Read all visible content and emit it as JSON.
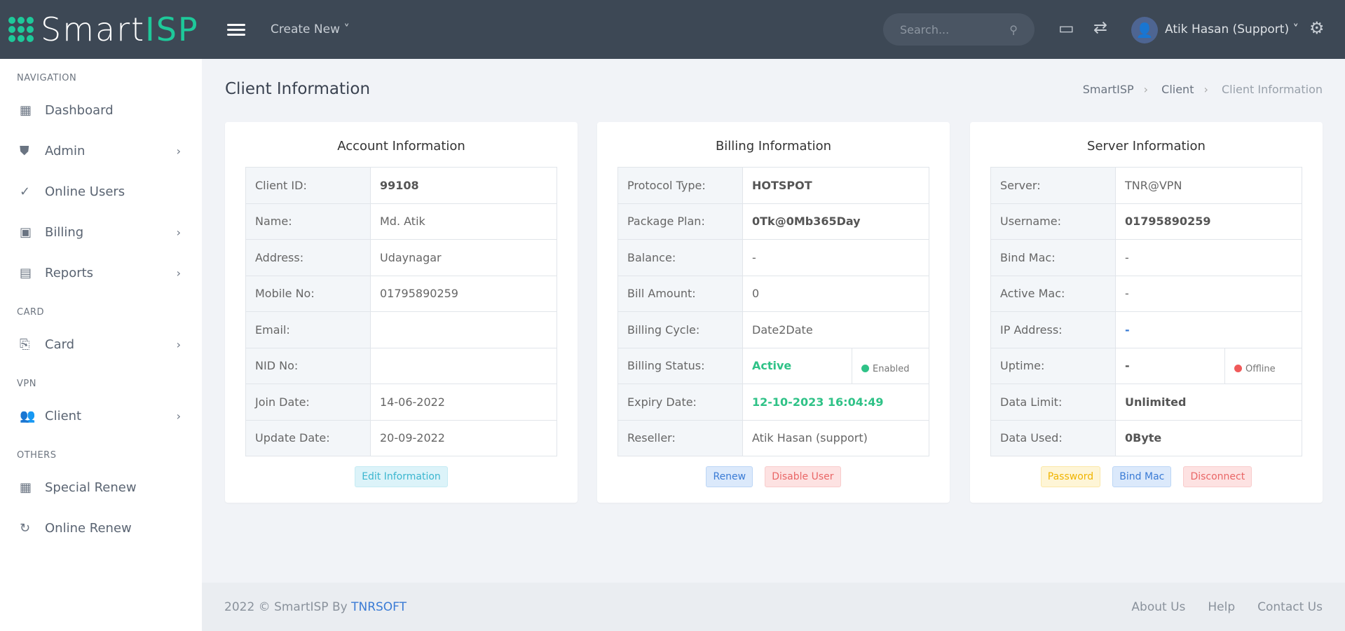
{
  "header": {
    "logo_plain": "Smart",
    "logo_accent": "ISP",
    "create_new": "Create New ˅",
    "search_placeholder": "Search...",
    "user_name": "Atik Hasan (Support) ˅"
  },
  "sidebar": {
    "sections": [
      {
        "title": "NAVIGATION",
        "items": [
          {
            "label": "Dashboard",
            "icon": "dashboard-icon"
          },
          {
            "label": "Admin",
            "icon": "shield-icon",
            "chevron": true
          },
          {
            "label": "Online Users",
            "icon": "check-circle-icon"
          },
          {
            "label": "Billing",
            "icon": "billing-icon",
            "chevron": true
          },
          {
            "label": "Reports",
            "icon": "reports-icon",
            "chevron": true
          }
        ]
      },
      {
        "title": "CARD",
        "items": [
          {
            "label": "Card",
            "icon": "card-icon",
            "chevron": true
          }
        ]
      },
      {
        "title": "VPN",
        "items": [
          {
            "label": "Client",
            "icon": "users-icon",
            "chevron": true
          }
        ]
      },
      {
        "title": "OTHERS",
        "items": [
          {
            "label": "Special Renew",
            "icon": "dashboard-icon"
          },
          {
            "label": "Online Renew",
            "icon": "refresh-icon"
          }
        ]
      }
    ]
  },
  "page": {
    "title": "Client Information",
    "breadcrumb": [
      "SmartISP",
      "Client",
      "Client Information"
    ]
  },
  "account": {
    "title": "Account Information",
    "rows": [
      [
        "Client ID:",
        "99108"
      ],
      [
        "Name:",
        "Md. Atik"
      ],
      [
        "Address:",
        "Udaynagar"
      ],
      [
        "Mobile No:",
        "01795890259"
      ],
      [
        "Email:",
        ""
      ],
      [
        "NID No:",
        ""
      ],
      [
        "Join Date:",
        "14-06-2022"
      ],
      [
        "Update Date:",
        "20-09-2022"
      ]
    ],
    "button": "Edit Information"
  },
  "billing": {
    "title": "Billing Information",
    "rows": [
      [
        "Protocol Type:",
        "HOTSPOT"
      ],
      [
        "Package Plan:",
        "0Tk@0Mb365Day"
      ],
      [
        "Balance:",
        "-"
      ],
      [
        "Bill Amount:",
        "0"
      ],
      [
        "Billing Cycle:",
        "Date2Date"
      ],
      [
        "Billing Status:",
        "Active"
      ],
      [
        "Expiry Date:",
        "12-10-2023 16:04:49"
      ],
      [
        "Reseller:",
        "Atik Hasan (support)"
      ]
    ],
    "status_badge": "Enabled",
    "buttons": [
      "Renew",
      "Disable User"
    ]
  },
  "server": {
    "title": "Server Information",
    "rows": [
      [
        "Server:",
        "TNR@VPN"
      ],
      [
        "Username:",
        "01795890259"
      ],
      [
        "Bind Mac:",
        "-"
      ],
      [
        "Active Mac:",
        "-"
      ],
      [
        "IP Address:",
        "-"
      ],
      [
        "Uptime:",
        "-"
      ],
      [
        "Data Limit:",
        "Unlimited"
      ],
      [
        "Data Used:",
        "0Byte"
      ]
    ],
    "status_badge": "Offline",
    "buttons": [
      "Password",
      "Bind Mac",
      "Disconnect"
    ]
  },
  "footer": {
    "copyright": "2022 © SmartISP By ",
    "company": "TNRSOFT",
    "links": [
      "About Us",
      "Help",
      "Contact Us"
    ]
  },
  "colors": {
    "header": "#3d4855",
    "accent": "#1ec99a",
    "green": "#2fc287",
    "red": "#f05a5a"
  }
}
